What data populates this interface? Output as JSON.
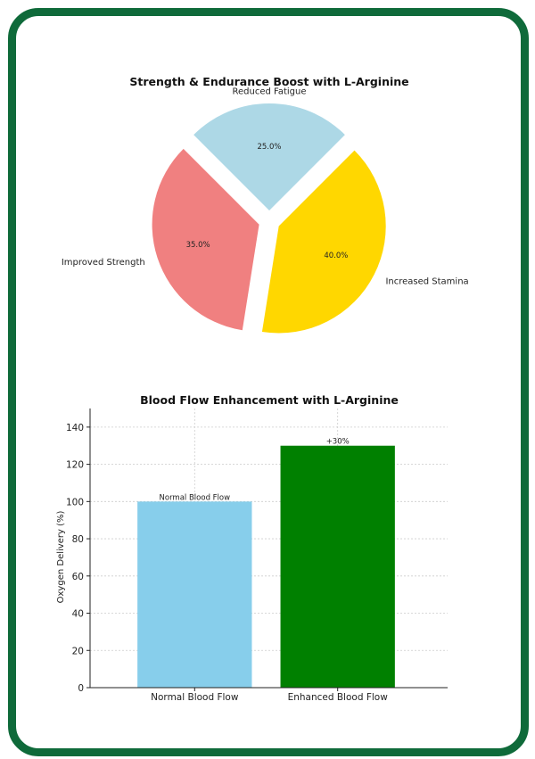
{
  "colors": {
    "border": "#0f6a3a"
  },
  "chart_data": [
    {
      "type": "pie",
      "title": "Strength & Endurance Boost with L-Arginine",
      "slices": [
        {
          "label": "Reduced Fatigue",
          "value": 25.0,
          "pct_label": "25.0%",
          "color": "#add8e6"
        },
        {
          "label": "Improved Strength",
          "value": 35.0,
          "pct_label": "35.0%",
          "color": "#f08080"
        },
        {
          "label": "Increased Stamina",
          "value": 40.0,
          "pct_label": "40.0%",
          "color": "#ffd700"
        }
      ]
    },
    {
      "type": "bar",
      "title": "Blood Flow Enhancement with L-Arginine",
      "ylabel": "Oxygen Delivery (%)",
      "xlabel": "",
      "ylim": [
        0,
        150
      ],
      "yticks": [
        0,
        20,
        40,
        60,
        80,
        100,
        120,
        140
      ],
      "grid": true,
      "categories": [
        "Normal Blood Flow",
        "Enhanced Blood Flow"
      ],
      "values": [
        100,
        130
      ],
      "colors": [
        "#87ceeb",
        "#008000"
      ],
      "annotations": [
        "Normal Blood Flow",
        "+30%"
      ]
    }
  ]
}
